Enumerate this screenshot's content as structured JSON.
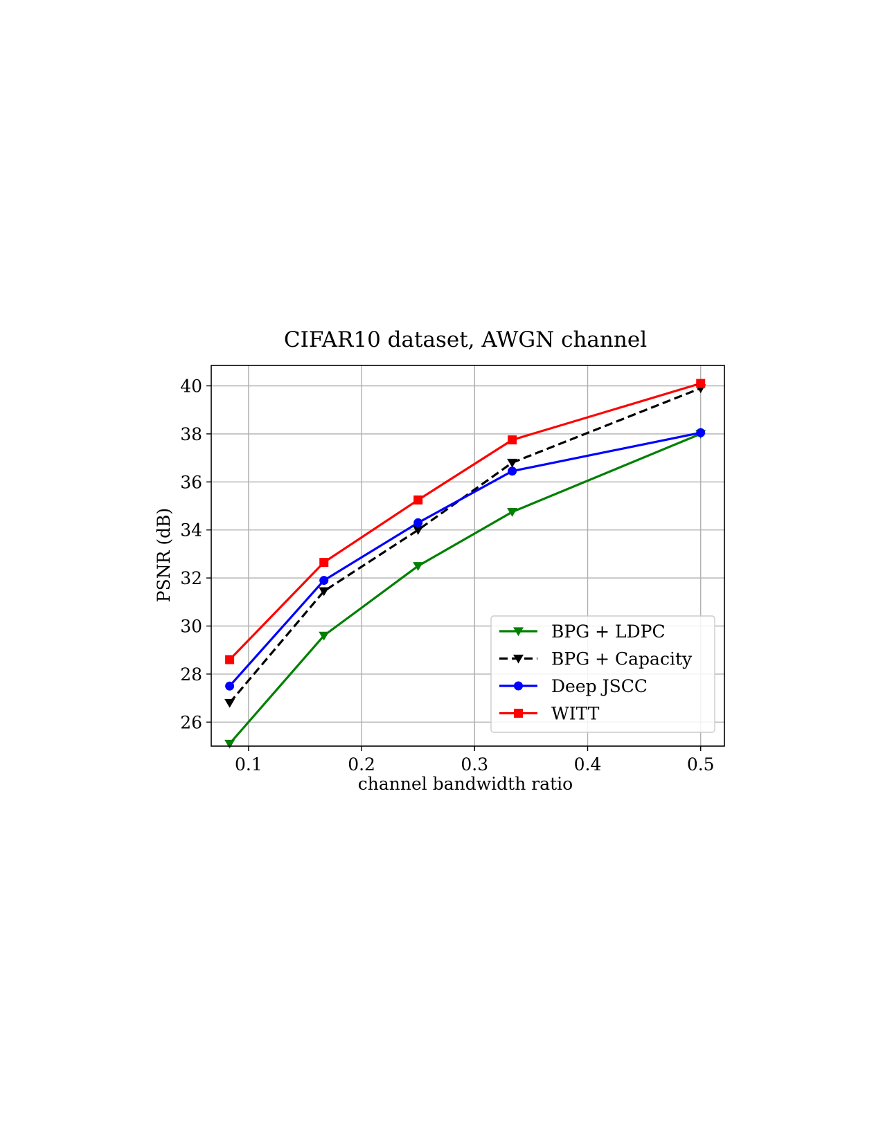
{
  "chart_data": {
    "type": "line",
    "title": "CIFAR10 dataset, AWGN channel",
    "xlabel": "channel bandwidth ratio",
    "ylabel": "PSNR (dB)",
    "xlim": [
      0.067,
      0.521
    ],
    "ylim": [
      25.0,
      40.85
    ],
    "xticks": [
      0.1,
      0.2,
      0.3,
      0.4,
      0.5
    ],
    "xtick_labels": [
      "0.1",
      "0.2",
      "0.3",
      "0.4",
      "0.5"
    ],
    "yticks": [
      26,
      28,
      30,
      32,
      34,
      36,
      38,
      40
    ],
    "ytick_labels": [
      "26",
      "28",
      "30",
      "32",
      "34",
      "36",
      "38",
      "40"
    ],
    "grid": true,
    "legend_position": "lower-right",
    "x": [
      0.0833,
      0.1667,
      0.25,
      0.3333,
      0.5
    ],
    "series": [
      {
        "name": "BPG + LDPC",
        "values": [
          25.1,
          29.6,
          32.5,
          34.75,
          38.0
        ],
        "color": "#008000",
        "marker": "triangle-down",
        "dash": "solid"
      },
      {
        "name": "BPG + Capacity",
        "values": [
          26.8,
          31.45,
          34.0,
          36.8,
          39.9
        ],
        "color": "#000000",
        "marker": "triangle-down",
        "dash": "dashed"
      },
      {
        "name": "Deep JSCC",
        "values": [
          27.5,
          31.9,
          34.3,
          36.45,
          38.05
        ],
        "color": "#0000ff",
        "marker": "circle",
        "dash": "solid"
      },
      {
        "name": "WITT",
        "values": [
          28.6,
          32.65,
          35.25,
          37.75,
          40.1
        ],
        "color": "#ff0000",
        "marker": "square",
        "dash": "solid"
      }
    ]
  }
}
